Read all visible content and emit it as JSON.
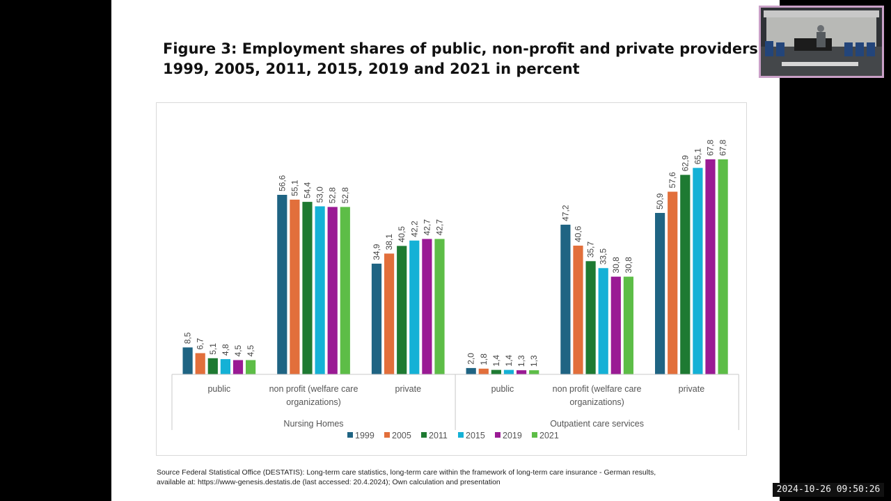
{
  "slide": {
    "title_line1": "Figure 3: Employment shares  of public, non-profit and private providers",
    "title_line2": "1999, 2005, 2011, 2015, 2019 and 2021 in percent",
    "source_line1": "Source Federal Statistical Office (DESTATIS): Long-term care statistics, long-term care within the framework of long-term care insurance - German results,",
    "source_line2": "available at: https://www-genesis.destatis.de (last accessed: 20.4.2024); Own calculation and presentation"
  },
  "overlay": {
    "timestamp": "2024-10-26  09:50:26"
  },
  "chart_data": {
    "type": "bar",
    "group_labels": [
      "Nursing Homes",
      "Outpatient care services"
    ],
    "categories": [
      {
        "group": "Nursing Homes",
        "label_lines": [
          "public"
        ]
      },
      {
        "group": "Nursing Homes",
        "label_lines": [
          "non profit (welfare care",
          "organizations)"
        ]
      },
      {
        "group": "Nursing Homes",
        "label_lines": [
          "private"
        ]
      },
      {
        "group": "Outpatient care services",
        "label_lines": [
          "public"
        ]
      },
      {
        "group": "Outpatient care services",
        "label_lines": [
          "non profit (welfare care",
          "organizations)"
        ]
      },
      {
        "group": "Outpatient care services",
        "label_lines": [
          "private"
        ]
      }
    ],
    "series": [
      {
        "name": "1999",
        "color": "#1f6483",
        "values": [
          8.5,
          56.6,
          34.9,
          2.0,
          47.2,
          50.9
        ],
        "labels": [
          "8,5",
          "56,6",
          "34,9",
          "2,0",
          "47,2",
          "50,9"
        ]
      },
      {
        "name": "2005",
        "color": "#e26f3b",
        "values": [
          6.7,
          55.1,
          38.1,
          1.8,
          40.6,
          57.6
        ],
        "labels": [
          "6,7",
          "55,1",
          "38,1",
          "1,8",
          "40,6",
          "57,6"
        ]
      },
      {
        "name": "2011",
        "color": "#1e7a32",
        "values": [
          5.1,
          54.4,
          40.5,
          1.4,
          35.7,
          62.9
        ],
        "labels": [
          "5,1",
          "54,4",
          "40,5",
          "1,4",
          "35,7",
          "62,9"
        ]
      },
      {
        "name": "2015",
        "color": "#14b1d6",
        "values": [
          4.8,
          53.0,
          42.2,
          1.4,
          33.5,
          65.1
        ],
        "labels": [
          "4,8",
          "53,0",
          "42,2",
          "1,4",
          "33,5",
          "65,1"
        ]
      },
      {
        "name": "2019",
        "color": "#9a1a94",
        "values": [
          4.5,
          52.8,
          42.7,
          1.3,
          30.8,
          67.8
        ],
        "labels": [
          "4,5",
          "52,8",
          "42,7",
          "1,3",
          "30,8",
          "67,8"
        ]
      },
      {
        "name": "2021",
        "color": "#5dbd47",
        "values": [
          4.5,
          52.8,
          42.7,
          1.3,
          30.8,
          67.8
        ],
        "labels": [
          "4,5",
          "52,8",
          "42,7",
          "1,3",
          "30,8",
          "67,8"
        ]
      }
    ],
    "ylim": [
      0,
      70
    ],
    "grid": false,
    "legend_position": "bottom-center"
  }
}
